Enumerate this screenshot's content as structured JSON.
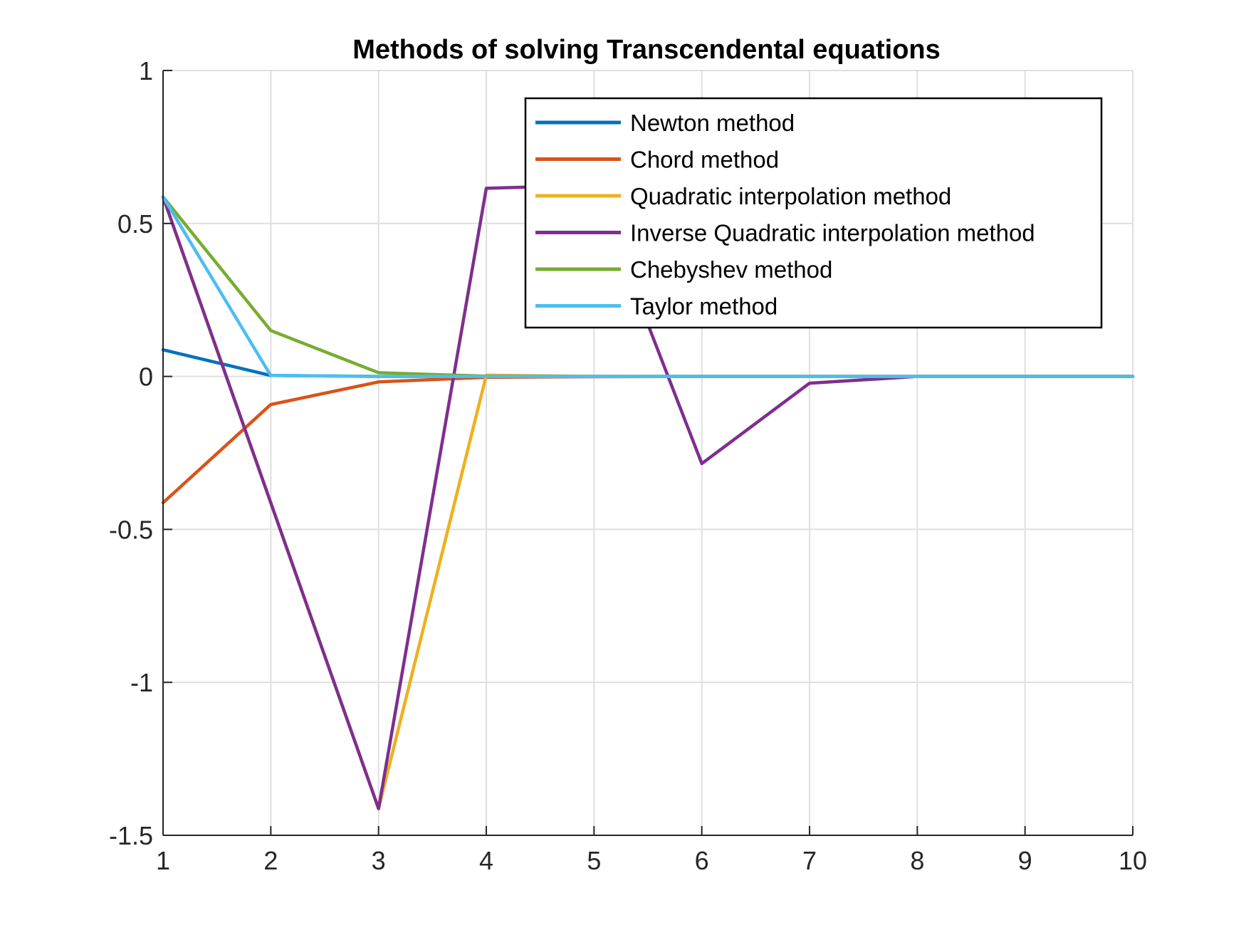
{
  "chart_data": {
    "type": "line",
    "title": "Methods of solving Transcendental equations",
    "xlabel": "",
    "ylabel": "",
    "xlim": [
      1,
      10
    ],
    "ylim": [
      -1.5,
      1
    ],
    "xticks": [
      1,
      2,
      3,
      4,
      5,
      6,
      7,
      8,
      9,
      10
    ],
    "xtick_labels": [
      "1",
      "2",
      "3",
      "4",
      "5",
      "6",
      "7",
      "8",
      "9",
      "10"
    ],
    "yticks": [
      -1.5,
      -1,
      -0.5,
      0,
      0.5,
      1
    ],
    "ytick_labels": [
      "-1.5",
      "-1",
      "-0.5",
      "0",
      "0.5",
      "1"
    ],
    "grid": true,
    "legend_position": "top-right",
    "x": [
      1,
      2,
      3,
      4,
      5,
      6,
      7,
      8,
      9,
      10
    ],
    "series": [
      {
        "name": "Newton method",
        "color": "#0072bd",
        "values": [
          0.087,
          0.003,
          0,
          0,
          0,
          0,
          0,
          0,
          0,
          0
        ]
      },
      {
        "name": "Chord method",
        "color": "#d95319",
        "values": [
          -0.413,
          -0.092,
          -0.018,
          -0.003,
          -0.001,
          0,
          0,
          0,
          0,
          0
        ]
      },
      {
        "name": "Quadratic interpolation method",
        "color": "#edb120",
        "values": [
          0.587,
          -0.413,
          -1.413,
          0.004,
          0,
          0,
          0,
          0,
          0,
          0
        ]
      },
      {
        "name": "Inverse Quadratic interpolation method",
        "color": "#7e2f8e",
        "values": [
          0.587,
          -0.413,
          -1.413,
          0.615,
          0.625,
          -0.285,
          -0.022,
          0,
          0,
          0
        ]
      },
      {
        "name": "Chebyshev method",
        "color": "#77ac30",
        "values": [
          0.587,
          0.15,
          0.012,
          0.001,
          0,
          0,
          0,
          0,
          0,
          0
        ]
      },
      {
        "name": "Taylor method",
        "color": "#4dbeee",
        "values": [
          0.587,
          0.003,
          0,
          0,
          0,
          0,
          0,
          0,
          0,
          0
        ]
      }
    ]
  }
}
